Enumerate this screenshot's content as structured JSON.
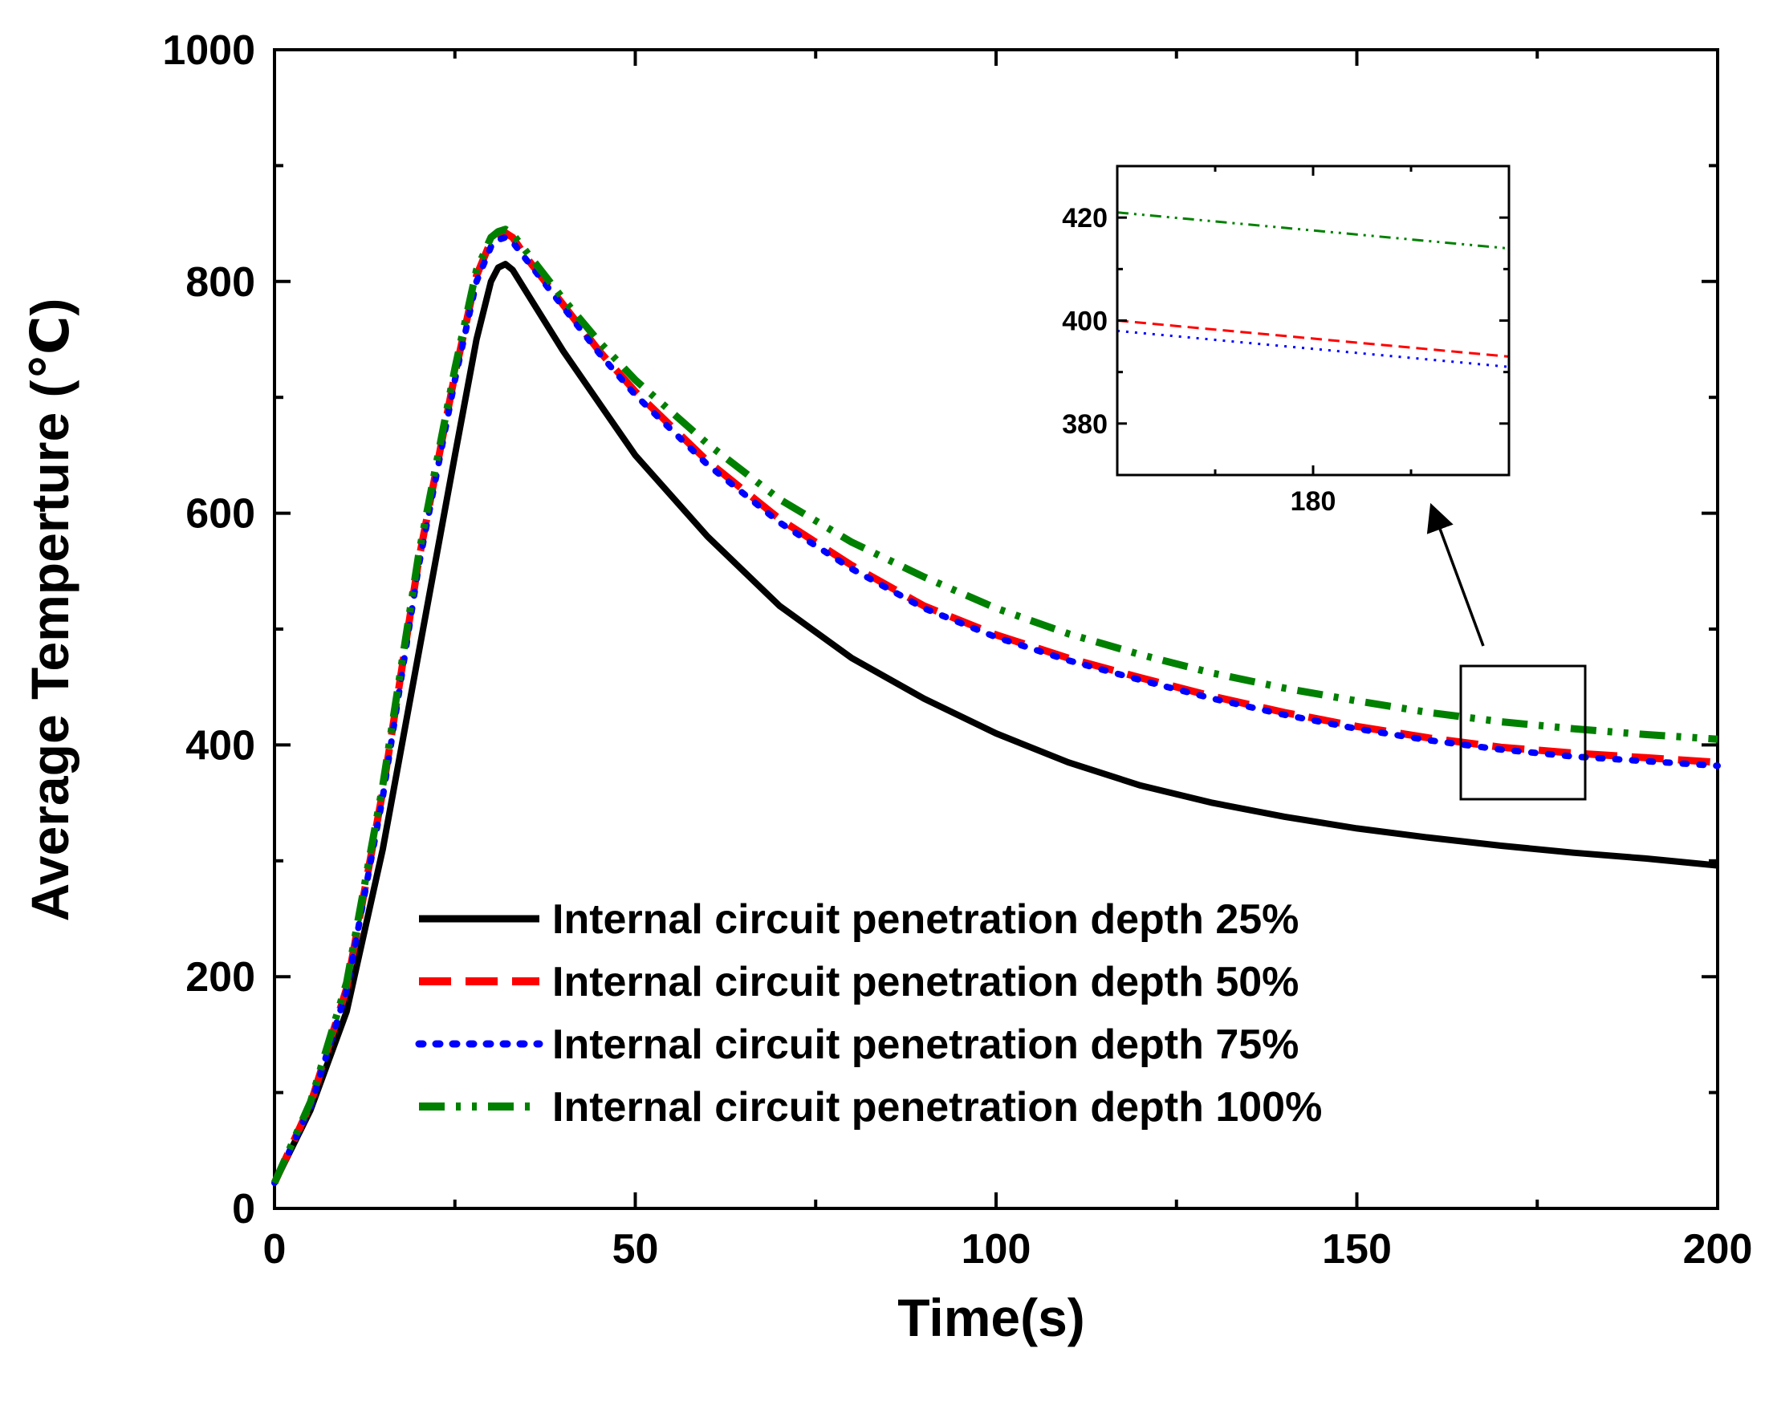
{
  "chart_data": {
    "type": "line",
    "xlabel": "Time(s)",
    "ylabel": "Average Temperture (℃)",
    "xlim": [
      0,
      200
    ],
    "ylim": [
      0,
      1000
    ],
    "xticks": [
      0,
      50,
      100,
      150,
      200
    ],
    "yticks": [
      0,
      200,
      400,
      600,
      800,
      1000
    ],
    "xtick_labels": [
      "0",
      "50",
      "100",
      "150",
      "200"
    ],
    "ytick_labels": [
      "0",
      "200",
      "400",
      "600",
      "800",
      "1000"
    ],
    "grid": false,
    "legend_position": "bottom-center",
    "series": [
      {
        "name": "Internal circuit penetration depth 25%",
        "color": "#000000",
        "style": "solid",
        "x": [
          0,
          5,
          10,
          15,
          20,
          25,
          28,
          30,
          31,
          32,
          33,
          35,
          40,
          45,
          50,
          60,
          70,
          80,
          90,
          100,
          110,
          120,
          130,
          140,
          150,
          160,
          170,
          180,
          190,
          200
        ],
        "y": [
          22,
          85,
          170,
          310,
          480,
          650,
          750,
          800,
          812,
          815,
          810,
          790,
          740,
          695,
          650,
          580,
          520,
          475,
          440,
          410,
          385,
          365,
          350,
          338,
          328,
          320,
          313,
          307,
          302,
          296
        ]
      },
      {
        "name": "Internal circuit penetration depth 50%",
        "color": "#ff0000",
        "style": "dashed",
        "x": [
          0,
          5,
          10,
          15,
          20,
          25,
          28,
          30,
          31,
          32,
          33,
          35,
          40,
          45,
          50,
          60,
          70,
          80,
          90,
          100,
          110,
          120,
          130,
          140,
          150,
          160,
          170,
          180,
          190,
          200
        ],
        "y": [
          22,
          90,
          190,
          360,
          560,
          720,
          805,
          835,
          840,
          842,
          838,
          820,
          780,
          740,
          705,
          645,
          595,
          555,
          520,
          495,
          475,
          458,
          442,
          428,
          416,
          406,
          398,
          393,
          389,
          385
        ]
      },
      {
        "name": "Internal circuit penetration depth 75%",
        "color": "#0000ff",
        "style": "dotted",
        "x": [
          0,
          5,
          10,
          15,
          20,
          25,
          28,
          30,
          31,
          32,
          33,
          35,
          40,
          45,
          50,
          60,
          70,
          80,
          90,
          100,
          110,
          120,
          130,
          140,
          150,
          160,
          170,
          180,
          190,
          200
        ],
        "y": [
          22,
          88,
          188,
          355,
          555,
          715,
          800,
          830,
          836,
          838,
          834,
          818,
          778,
          738,
          702,
          642,
          592,
          552,
          518,
          493,
          473,
          456,
          440,
          426,
          414,
          404,
          396,
          390,
          386,
          382
        ]
      },
      {
        "name": "Internal circuit penetration depth 100%",
        "color": "#008000",
        "style": "dashdot",
        "x": [
          0,
          5,
          10,
          15,
          20,
          25,
          28,
          30,
          31,
          32,
          33,
          35,
          40,
          45,
          50,
          60,
          70,
          80,
          90,
          100,
          110,
          120,
          130,
          140,
          150,
          160,
          170,
          180,
          190,
          200
        ],
        "y": [
          22,
          92,
          195,
          365,
          565,
          725,
          810,
          838,
          843,
          845,
          841,
          825,
          785,
          748,
          715,
          660,
          612,
          575,
          545,
          518,
          496,
          478,
          462,
          449,
          438,
          428,
          420,
          414,
          409,
          405
        ]
      }
    ],
    "inset": {
      "xticks": [
        180
      ],
      "yticks": [
        380,
        400,
        420
      ],
      "xtick_labels": [
        "180"
      ],
      "ytick_labels": [
        "380",
        "400",
        "420"
      ],
      "xlim": [
        175,
        185
      ],
      "ylim": [
        370,
        430
      ],
      "series": [
        {
          "color": "#008000",
          "style": "dashdot",
          "x": [
            175,
            185
          ],
          "y": [
            421,
            414
          ]
        },
        {
          "color": "#ff0000",
          "style": "dashed",
          "x": [
            175,
            185
          ],
          "y": [
            400,
            393
          ]
        },
        {
          "color": "#0000ff",
          "style": "dotted",
          "x": [
            175,
            185
          ],
          "y": [
            398,
            391
          ]
        }
      ]
    }
  }
}
